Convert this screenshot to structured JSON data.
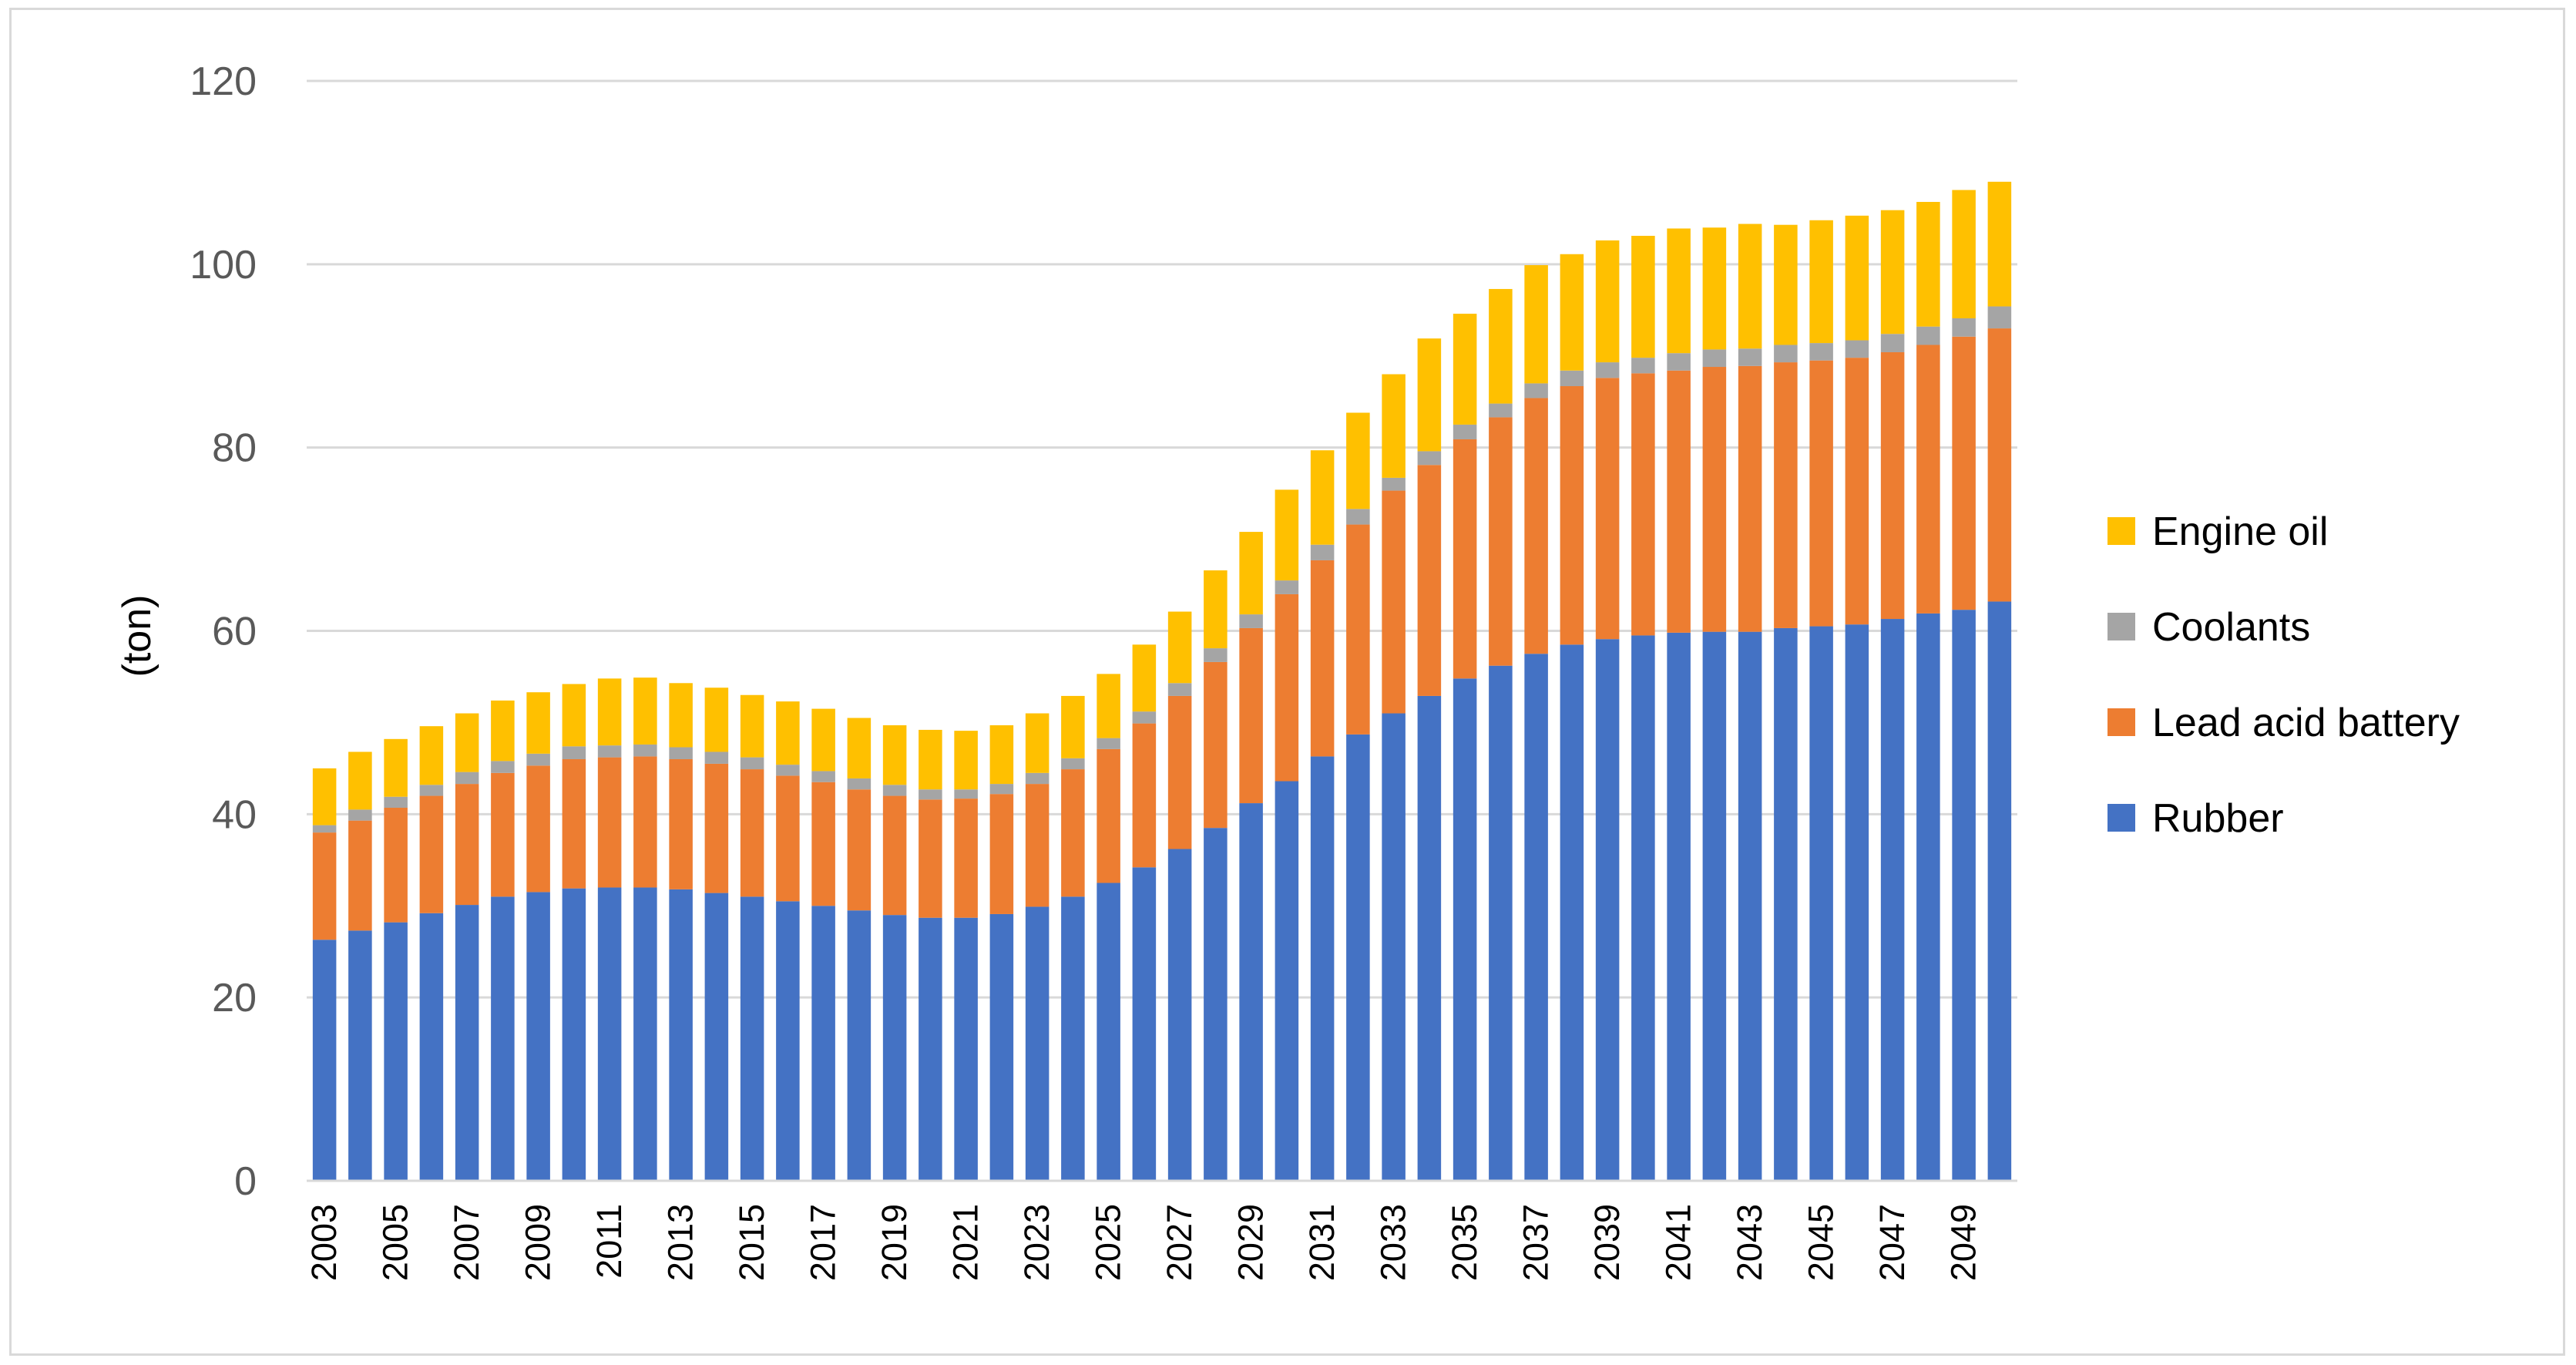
{
  "chart_data": {
    "type": "bar",
    "stacked": true,
    "title": "",
    "xlabel": "",
    "ylabel": "(ton)",
    "ylim": [
      0,
      120
    ],
    "yticks": [
      0,
      20,
      40,
      60,
      80,
      100,
      120
    ],
    "grid": "horizontal",
    "legend_position": "right",
    "categories": [
      "2003",
      "2004",
      "2005",
      "2006",
      "2007",
      "2008",
      "2009",
      "2010",
      "2011",
      "2012",
      "2013",
      "2014",
      "2015",
      "2016",
      "2017",
      "2018",
      "2019",
      "2020",
      "2021",
      "2022",
      "2023",
      "2024",
      "2025",
      "2026",
      "2027",
      "2028",
      "2029",
      "2030",
      "2031",
      "2032",
      "2033",
      "2034",
      "2035",
      "2036",
      "2037",
      "2038",
      "2039",
      "2040",
      "2041",
      "2042",
      "2043",
      "2044",
      "2045",
      "2046",
      "2047",
      "2048",
      "2049",
      "2050"
    ],
    "x_tick_labels": [
      "2003",
      "2005",
      "2007",
      "2009",
      "2011",
      "2013",
      "2015",
      "2017",
      "2019",
      "2021",
      "2023",
      "2025",
      "2027",
      "2029",
      "2031",
      "2033",
      "2035",
      "2037",
      "2039",
      "2041",
      "2043",
      "2045",
      "2047",
      "2049"
    ],
    "series": [
      {
        "name": "Rubber",
        "color": "#4472C4",
        "values": [
          26.3,
          27.3,
          28.2,
          29.2,
          30.1,
          31.0,
          31.5,
          31.9,
          32.0,
          32.0,
          31.8,
          31.4,
          31.0,
          30.5,
          30.0,
          29.5,
          29.0,
          28.7,
          28.7,
          29.1,
          29.9,
          31.0,
          32.5,
          34.2,
          36.2,
          38.5,
          41.2,
          43.6,
          46.3,
          48.7,
          51.0,
          52.9,
          54.8,
          56.2,
          57.5,
          58.5,
          59.1,
          59.5,
          59.8,
          59.9,
          59.9,
          60.3,
          60.5,
          60.7,
          61.3,
          61.9,
          62.3,
          63.2
        ]
      },
      {
        "name": "Lead acid battery",
        "color": "#ED7D31",
        "values": [
          11.7,
          12.0,
          12.5,
          12.8,
          13.2,
          13.5,
          13.8,
          14.1,
          14.2,
          14.3,
          14.2,
          14.1,
          13.9,
          13.7,
          13.5,
          13.2,
          13.0,
          12.9,
          13.0,
          13.1,
          13.4,
          13.9,
          14.6,
          15.7,
          16.7,
          18.1,
          19.1,
          20.4,
          21.4,
          22.9,
          24.3,
          25.2,
          26.1,
          27.1,
          27.9,
          28.2,
          28.5,
          28.6,
          28.6,
          28.9,
          29.0,
          29.0,
          29.0,
          29.1,
          29.1,
          29.3,
          29.8,
          29.8
        ]
      },
      {
        "name": "Coolants",
        "color": "#A5A5A5",
        "values": [
          0.8,
          1.2,
          1.2,
          1.2,
          1.3,
          1.3,
          1.3,
          1.4,
          1.3,
          1.3,
          1.3,
          1.3,
          1.3,
          1.2,
          1.2,
          1.2,
          1.2,
          1.1,
          1.0,
          1.1,
          1.2,
          1.2,
          1.2,
          1.3,
          1.4,
          1.5,
          1.5,
          1.5,
          1.7,
          1.7,
          1.4,
          1.5,
          1.6,
          1.5,
          1.6,
          1.7,
          1.7,
          1.7,
          1.9,
          1.9,
          1.9,
          1.9,
          1.9,
          1.9,
          2.0,
          2.0,
          2.0,
          2.4
        ]
      },
      {
        "name": "Engine oil",
        "color": "#FFC000",
        "values": [
          6.2,
          6.3,
          6.3,
          6.4,
          6.4,
          6.6,
          6.7,
          6.8,
          7.3,
          7.3,
          7.0,
          7.0,
          6.8,
          6.9,
          6.8,
          6.6,
          6.5,
          6.5,
          6.4,
          6.4,
          6.5,
          6.8,
          7.0,
          7.3,
          7.8,
          8.5,
          9.0,
          9.9,
          10.3,
          10.5,
          11.3,
          12.3,
          12.1,
          12.5,
          12.9,
          12.7,
          13.3,
          13.3,
          13.6,
          13.3,
          13.6,
          13.1,
          13.4,
          13.6,
          13.5,
          13.6,
          14.0,
          13.6
        ]
      }
    ]
  }
}
